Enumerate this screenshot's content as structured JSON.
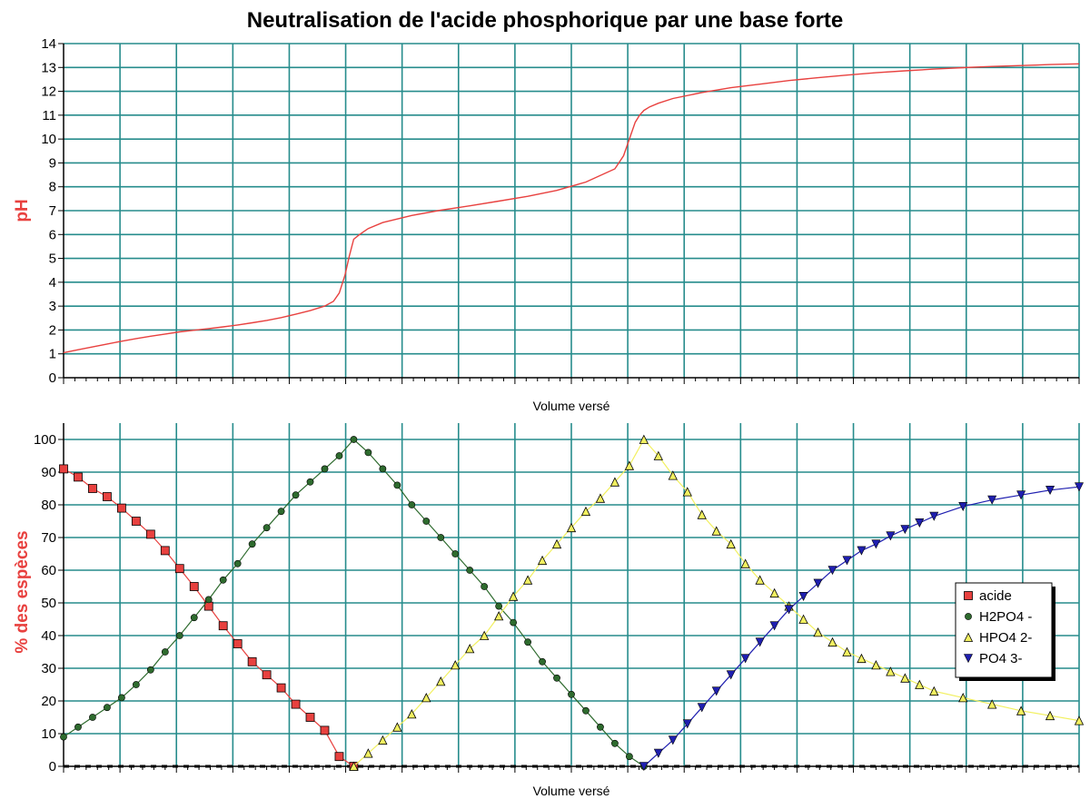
{
  "title": "Neutralisation de l'acide phosphorique par une base forte",
  "chart_data": [
    {
      "type": "line",
      "xlabel": "Volume versé",
      "ylabel": "pH",
      "ylim": [
        0,
        14
      ],
      "yticks": [
        0,
        1,
        2,
        3,
        4,
        5,
        6,
        7,
        8,
        9,
        10,
        11,
        12,
        13,
        14
      ],
      "xlim": [
        0,
        35
      ],
      "grid": true,
      "color": "#e8413f",
      "series": [
        {
          "x": [
            0,
            0.5,
            1,
            1.5,
            2,
            2.5,
            3,
            3.5,
            4,
            4.5,
            5,
            5.5,
            6,
            6.5,
            7,
            7.5,
            8,
            8.5,
            9,
            9.3,
            9.5,
            9.7,
            9.85,
            10,
            10.2,
            10.5,
            11,
            12,
            13,
            14,
            15,
            16,
            17,
            18,
            19,
            19.3,
            19.5,
            19.7,
            19.85,
            20,
            20.2,
            20.5,
            21,
            22,
            23,
            24,
            25,
            26,
            27,
            28,
            29,
            30,
            31,
            32,
            33,
            34,
            35
          ],
          "y": [
            1.05,
            1.17,
            1.29,
            1.41,
            1.53,
            1.64,
            1.74,
            1.83,
            1.92,
            1.99,
            2.06,
            2.13,
            2.21,
            2.3,
            2.4,
            2.52,
            2.66,
            2.81,
            3.0,
            3.2,
            3.55,
            4.3,
            5.1,
            5.8,
            6.0,
            6.25,
            6.5,
            6.8,
            7.02,
            7.2,
            7.4,
            7.6,
            7.85,
            8.2,
            8.75,
            9.3,
            10.0,
            10.7,
            11.0,
            11.2,
            11.35,
            11.5,
            11.7,
            11.95,
            12.15,
            12.3,
            12.45,
            12.57,
            12.68,
            12.78,
            12.86,
            12.93,
            12.99,
            13.04,
            13.08,
            13.12,
            13.15
          ]
        }
      ]
    },
    {
      "type": "line",
      "xlabel": "Volume versé",
      "ylabel": "% des espèces",
      "ylim": [
        0,
        105
      ],
      "yticks": [
        0,
        10,
        20,
        30,
        40,
        50,
        60,
        70,
        80,
        90,
        100
      ],
      "xlim": [
        0,
        35
      ],
      "grid": true,
      "legend": "right",
      "series": [
        {
          "name": "acide",
          "color": "#e8413f",
          "marker": "square",
          "x": [
            0,
            0.5,
            1,
            1.5,
            2,
            2.5,
            3,
            3.5,
            4,
            4.5,
            5,
            5.5,
            6,
            6.5,
            7,
            7.5,
            8,
            8.5,
            9,
            9.5,
            10
          ],
          "y": [
            91,
            88.5,
            85,
            82.5,
            79,
            75,
            71,
            66,
            60.5,
            55,
            49,
            43,
            37.5,
            32,
            28,
            24,
            19,
            15,
            11,
            3,
            0
          ]
        },
        {
          "name": "H2PO4 -",
          "color": "#2e6b2e",
          "marker": "circle",
          "x": [
            0,
            0.5,
            1,
            1.5,
            2,
            2.5,
            3,
            3.5,
            4,
            4.5,
            5,
            5.5,
            6,
            6.5,
            7,
            7.5,
            8,
            8.5,
            9,
            9.5,
            10,
            10.5,
            11,
            11.5,
            12,
            12.5,
            13,
            13.5,
            14,
            14.5,
            15,
            15.5,
            16,
            16.5,
            17,
            17.5,
            18,
            18.5,
            19,
            19.5,
            20
          ],
          "y": [
            9,
            12,
            15,
            18,
            21,
            25,
            29.5,
            35,
            40,
            45.5,
            51,
            57,
            62,
            68,
            73,
            78,
            83,
            87,
            91,
            95,
            100,
            96,
            91,
            86,
            80,
            75,
            70,
            65,
            60,
            55,
            49,
            44,
            38,
            32,
            27,
            22,
            17,
            12,
            7,
            3,
            0
          ]
        },
        {
          "name": "HPO4 2-",
          "color": "#f2f060",
          "marker": "triangle-up",
          "x": [
            10,
            10.5,
            11,
            11.5,
            12,
            12.5,
            13,
            13.5,
            14,
            14.5,
            15,
            15.5,
            16,
            16.5,
            17,
            17.5,
            18,
            18.5,
            19,
            19.5,
            20,
            20.5,
            21,
            21.5,
            22,
            22.5,
            23,
            23.5,
            24,
            24.5,
            25,
            25.5,
            26,
            26.5,
            27,
            27.5,
            28,
            28.5,
            29,
            29.5,
            30,
            31,
            32,
            33,
            34,
            35
          ],
          "y": [
            0,
            4,
            8,
            12,
            16,
            21,
            26,
            31,
            36,
            40,
            46,
            52,
            57,
            63,
            68,
            73,
            78,
            82,
            87,
            92,
            100,
            95,
            89,
            84,
            77,
            72,
            68,
            62,
            57,
            53,
            49,
            45,
            41,
            38,
            35,
            33,
            31,
            29,
            27,
            25,
            23,
            21,
            19,
            17,
            15.5,
            14
          ]
        },
        {
          "name": "PO4 3-",
          "color": "#1f1fb0",
          "marker": "triangle-down",
          "x": [
            20,
            20.5,
            21,
            21.5,
            22,
            22.5,
            23,
            23.5,
            24,
            24.5,
            25,
            25.5,
            26,
            26.5,
            27,
            27.5,
            28,
            28.5,
            29,
            29.5,
            30,
            31,
            32,
            33,
            34,
            35
          ],
          "y": [
            0,
            4,
            8,
            13,
            18,
            23,
            28,
            33,
            38,
            43,
            48,
            52,
            56,
            60,
            63,
            66,
            68,
            70.5,
            72.5,
            74.5,
            76.5,
            79.5,
            81.5,
            83,
            84.5,
            85.5
          ]
        }
      ]
    }
  ]
}
